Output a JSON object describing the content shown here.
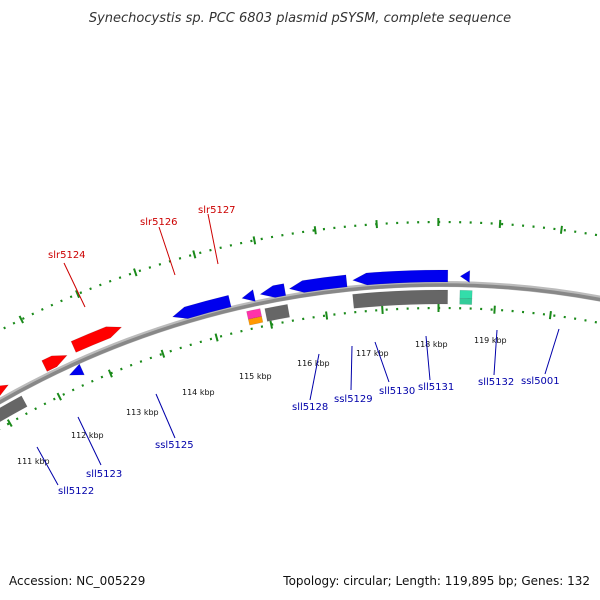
{
  "title": "Synechocystis sp. PCC 6803 plasmid pSYSM, complete sequence",
  "accession": "Accession: NC_005229",
  "topology": "Topology: circular; Length: 119,895 bp; Genes: 132",
  "colors": {
    "forward_label": "#cc0000",
    "reverse_label": "#0000aa",
    "backbone": "#888888",
    "tick": "#1a8a1a",
    "forward_gene": "#ff0000",
    "reverse_gene": "#0000ee",
    "gray_feature": "#666666"
  },
  "ticks": [
    {
      "label": "111 kbp",
      "kbp": 111
    },
    {
      "label": "112 kbp",
      "kbp": 112
    },
    {
      "label": "113 kbp",
      "kbp": 113
    },
    {
      "label": "114 kbp",
      "kbp": 114
    },
    {
      "label": "115 kbp",
      "kbp": 115
    },
    {
      "label": "116 kbp",
      "kbp": 116
    },
    {
      "label": "117 kbp",
      "kbp": 117
    },
    {
      "label": "118 kbp",
      "kbp": 118
    },
    {
      "label": "119 kbp",
      "kbp": 119
    }
  ],
  "forward_labels": [
    "slr5124",
    "slr5126",
    "slr5127"
  ],
  "reverse_labels": [
    "sll5122",
    "sll5123",
    "ssl5125",
    "sll5128",
    "ssl5129",
    "sll5130",
    "sll5131",
    "sll5132",
    "ssl5001"
  ]
}
